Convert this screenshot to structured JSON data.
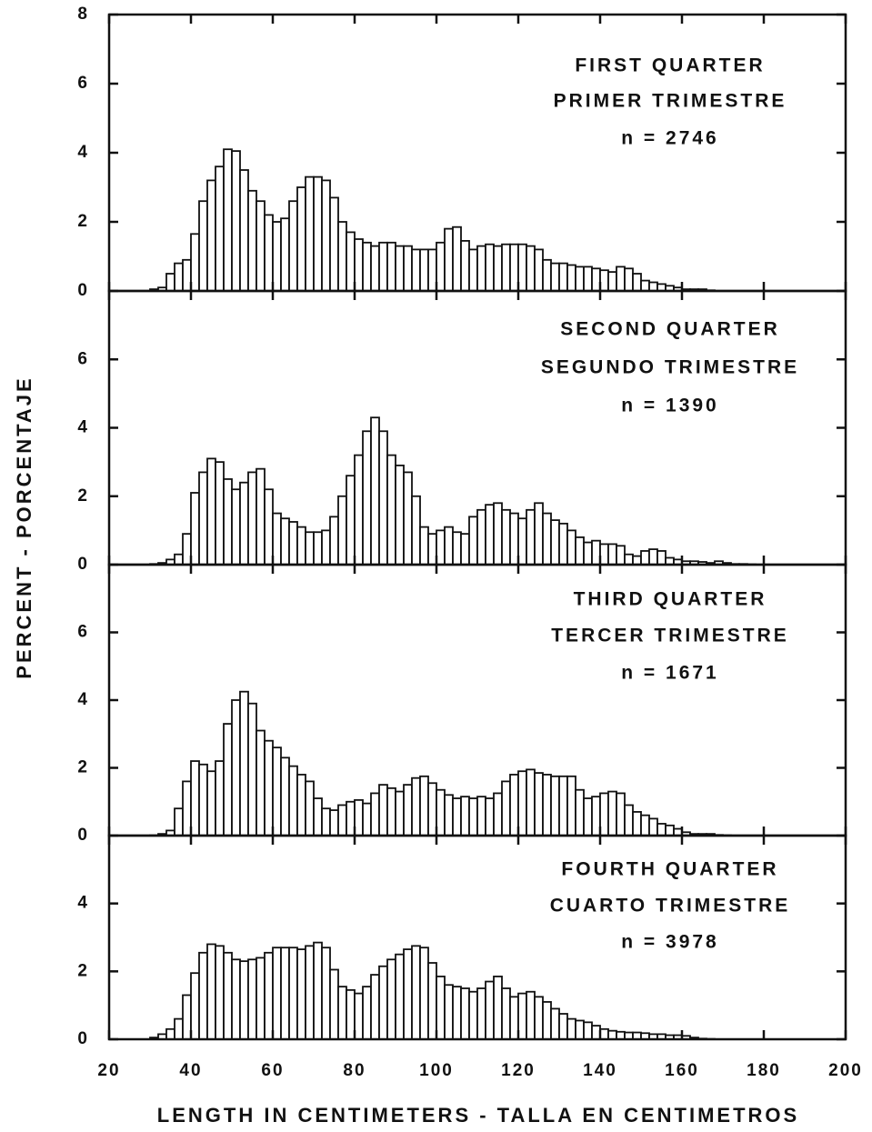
{
  "chart_data": [
    {
      "type": "histogram",
      "title": "FIRST QUARTER",
      "subtitle": "PRIMER TRIMESTRE",
      "annotation": "n = 2746",
      "ylabel": "PERCENT - PORCENTAJE",
      "bins": [
        30,
        32,
        34,
        36,
        38,
        40,
        42,
        44,
        46,
        48,
        50,
        52,
        54,
        56,
        58,
        60,
        62,
        64,
        66,
        68,
        70,
        72,
        74,
        76,
        78,
        80,
        82,
        84,
        86,
        88,
        90,
        92,
        94,
        96,
        98,
        100,
        102,
        104,
        106,
        108,
        110,
        112,
        114,
        116,
        118,
        120,
        122,
        124,
        126,
        128,
        130,
        132,
        134,
        136,
        138,
        140,
        142,
        144,
        146,
        148,
        150,
        152,
        154,
        156,
        158,
        160,
        162,
        164,
        166,
        168,
        170,
        172,
        174,
        176,
        178,
        180
      ],
      "values": [
        0.05,
        0.1,
        0.5,
        0.8,
        0.9,
        1.65,
        2.6,
        3.2,
        3.6,
        4.1,
        4.05,
        3.5,
        2.9,
        2.6,
        2.2,
        2.0,
        2.1,
        2.6,
        3.0,
        3.3,
        3.3,
        3.2,
        2.7,
        2.0,
        1.7,
        1.5,
        1.4,
        1.3,
        1.4,
        1.4,
        1.3,
        1.3,
        1.2,
        1.2,
        1.2,
        1.4,
        1.8,
        1.85,
        1.45,
        1.2,
        1.3,
        1.35,
        1.3,
        1.35,
        1.35,
        1.35,
        1.3,
        1.2,
        0.9,
        0.8,
        0.8,
        0.75,
        0.7,
        0.7,
        0.65,
        0.6,
        0.55,
        0.7,
        0.65,
        0.5,
        0.3,
        0.25,
        0.2,
        0.15,
        0.1,
        0.05,
        0.05,
        0.05,
        0.02,
        0,
        0,
        0,
        0,
        0,
        0
      ],
      "color": "#ffffff",
      "xlim": [
        20,
        200
      ],
      "ylim": [
        0,
        8
      ],
      "yticks": [
        0,
        2,
        4,
        6,
        8
      ]
    },
    {
      "type": "histogram",
      "title": "SECOND QUARTER",
      "subtitle": "SEGUNDO TRIMESTRE",
      "annotation": "n = 1390",
      "bins": [
        30,
        32,
        34,
        36,
        38,
        40,
        42,
        44,
        46,
        48,
        50,
        52,
        54,
        56,
        58,
        60,
        62,
        64,
        66,
        68,
        70,
        72,
        74,
        76,
        78,
        80,
        82,
        84,
        86,
        88,
        90,
        92,
        94,
        96,
        98,
        100,
        102,
        104,
        106,
        108,
        110,
        112,
        114,
        116,
        118,
        120,
        122,
        124,
        126,
        128,
        130,
        132,
        134,
        136,
        138,
        140,
        142,
        144,
        146,
        148,
        150,
        152,
        154,
        156,
        158,
        160,
        162,
        164,
        166,
        168,
        170,
        172,
        174,
        176,
        178,
        180
      ],
      "values": [
        0.02,
        0.05,
        0.15,
        0.3,
        0.9,
        2.1,
        2.7,
        3.1,
        3.0,
        2.5,
        2.2,
        2.4,
        2.7,
        2.8,
        2.2,
        1.5,
        1.35,
        1.25,
        1.1,
        0.95,
        0.95,
        1.0,
        1.4,
        2.0,
        2.6,
        3.2,
        3.9,
        4.3,
        3.9,
        3.2,
        2.9,
        2.7,
        2.0,
        1.1,
        0.9,
        1.0,
        1.1,
        0.95,
        0.9,
        1.4,
        1.6,
        1.75,
        1.8,
        1.6,
        1.5,
        1.35,
        1.6,
        1.8,
        1.5,
        1.3,
        1.2,
        1.0,
        0.8,
        0.65,
        0.7,
        0.6,
        0.6,
        0.55,
        0.3,
        0.25,
        0.4,
        0.45,
        0.4,
        0.2,
        0.15,
        0.1,
        0.1,
        0.08,
        0.05,
        0.1,
        0.05,
        0.02,
        0.02,
        0.01,
        0
      ],
      "color": "#ffffff",
      "xlim": [
        20,
        200
      ],
      "ylim": [
        0,
        8
      ],
      "yticks": [
        0,
        2,
        4,
        6
      ]
    },
    {
      "type": "histogram",
      "title": "THIRD QUARTER",
      "subtitle": "TERCER TRIMESTRE",
      "annotation": "n = 1671",
      "bins": [
        30,
        32,
        34,
        36,
        38,
        40,
        42,
        44,
        46,
        48,
        50,
        52,
        54,
        56,
        58,
        60,
        62,
        64,
        66,
        68,
        70,
        72,
        74,
        76,
        78,
        80,
        82,
        84,
        86,
        88,
        90,
        92,
        94,
        96,
        98,
        100,
        102,
        104,
        106,
        108,
        110,
        112,
        114,
        116,
        118,
        120,
        122,
        124,
        126,
        128,
        130,
        132,
        134,
        136,
        138,
        140,
        142,
        144,
        146,
        148,
        150,
        152,
        154,
        156,
        158,
        160,
        162,
        164,
        166,
        168,
        170,
        172,
        174,
        176,
        178,
        180
      ],
      "values": [
        0.01,
        0.05,
        0.15,
        0.8,
        1.6,
        2.2,
        2.1,
        1.9,
        2.2,
        3.3,
        4.0,
        4.25,
        3.9,
        3.1,
        2.8,
        2.6,
        2.3,
        2.05,
        1.8,
        1.6,
        1.1,
        0.8,
        0.75,
        0.9,
        1.0,
        1.05,
        0.95,
        1.25,
        1.5,
        1.4,
        1.3,
        1.5,
        1.7,
        1.75,
        1.55,
        1.35,
        1.2,
        1.1,
        1.15,
        1.1,
        1.15,
        1.1,
        1.25,
        1.6,
        1.8,
        1.9,
        1.95,
        1.85,
        1.8,
        1.75,
        1.75,
        1.75,
        1.35,
        1.1,
        1.15,
        1.25,
        1.3,
        1.25,
        0.9,
        0.7,
        0.6,
        0.5,
        0.35,
        0.3,
        0.2,
        0.1,
        0.05,
        0.05,
        0.05,
        0.02,
        0.01,
        0,
        0,
        0,
        0
      ],
      "color": "#ffffff",
      "xlim": [
        20,
        200
      ],
      "ylim": [
        0,
        8
      ],
      "yticks": [
        0,
        2,
        4,
        6
      ]
    },
    {
      "type": "histogram",
      "title": "FOURTH QUARTER",
      "subtitle": "CUARTO TRIMESTRE",
      "annotation": "n = 3978",
      "xlabel": "LENGTH IN CENTIMETERS - TALLA EN CENTIMETROS",
      "bins": [
        30,
        32,
        34,
        36,
        38,
        40,
        42,
        44,
        46,
        48,
        50,
        52,
        54,
        56,
        58,
        60,
        62,
        64,
        66,
        68,
        70,
        72,
        74,
        76,
        78,
        80,
        82,
        84,
        86,
        88,
        90,
        92,
        94,
        96,
        98,
        100,
        102,
        104,
        106,
        108,
        110,
        112,
        114,
        116,
        118,
        120,
        122,
        124,
        126,
        128,
        130,
        132,
        134,
        136,
        138,
        140,
        142,
        144,
        146,
        148,
        150,
        152,
        154,
        156,
        158,
        160,
        162,
        164,
        166,
        168,
        170,
        172,
        174,
        176,
        178,
        180
      ],
      "values": [
        0.05,
        0.15,
        0.3,
        0.6,
        1.3,
        1.95,
        2.55,
        2.8,
        2.75,
        2.55,
        2.35,
        2.3,
        2.35,
        2.4,
        2.55,
        2.7,
        2.7,
        2.7,
        2.65,
        2.75,
        2.85,
        2.7,
        2.05,
        1.55,
        1.45,
        1.35,
        1.55,
        1.9,
        2.15,
        2.35,
        2.5,
        2.65,
        2.75,
        2.7,
        2.25,
        1.85,
        1.6,
        1.55,
        1.5,
        1.4,
        1.5,
        1.7,
        1.85,
        1.5,
        1.25,
        1.35,
        1.4,
        1.25,
        1.1,
        0.9,
        0.75,
        0.6,
        0.55,
        0.5,
        0.4,
        0.3,
        0.25,
        0.22,
        0.2,
        0.2,
        0.18,
        0.15,
        0.15,
        0.12,
        0.12,
        0.1,
        0.05,
        0.02,
        0.01,
        0,
        0,
        0,
        0,
        0,
        0
      ],
      "color": "#ffffff",
      "xlim": [
        20,
        200
      ],
      "ylim": [
        0,
        6
      ],
      "yticks": [
        0,
        2,
        4
      ],
      "xticks": [
        20,
        40,
        60,
        80,
        100,
        120,
        140,
        160,
        180,
        200
      ]
    }
  ]
}
